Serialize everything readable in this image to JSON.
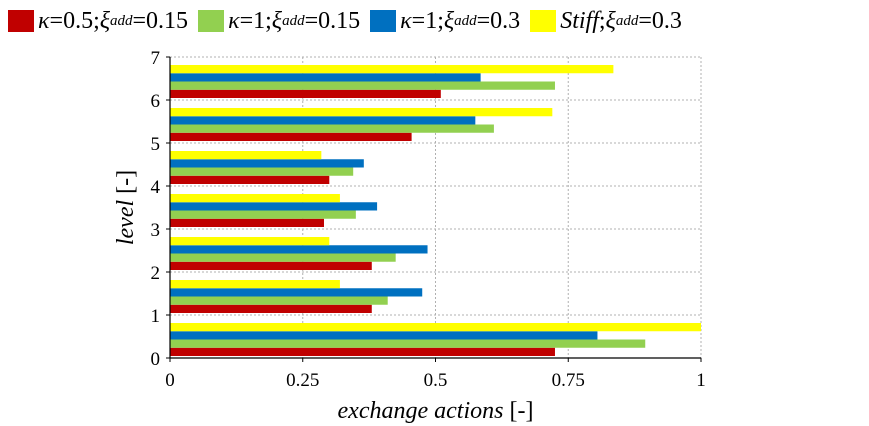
{
  "colors": {
    "series_0": "#c00000",
    "series_1": "#92d050",
    "series_2": "#0070c0",
    "series_3": "#ffff00",
    "grid": "#b0b0b0",
    "axis": "#000000"
  },
  "legend": [
    {
      "symbol": "κ",
      "eq": "=0.5; ",
      "xi": "ξ",
      "sub": "add",
      "value": "=0.15"
    },
    {
      "symbol": "κ",
      "eq": "=1; ",
      "xi": "ξ",
      "sub": "add",
      "value": "=0.15"
    },
    {
      "symbol": "κ",
      "eq": "=1; ",
      "xi": "ξ",
      "sub": "add",
      "value": "=0.3"
    },
    {
      "symbol": "Stiff",
      "eq": "; ",
      "xi": "ξ",
      "sub": "add",
      "value": "=0.3"
    }
  ],
  "chart_data": {
    "type": "bar",
    "orientation": "horizontal",
    "categories": [
      "0-1",
      "1-2",
      "2-3",
      "3-4",
      "4-5",
      "5-6",
      "6-7"
    ],
    "series": [
      {
        "name": "κ=0.5; ξadd=0.15",
        "values": [
          0.725,
          0.38,
          0.38,
          0.29,
          0.3,
          0.455,
          0.51
        ]
      },
      {
        "name": "κ=1; ξadd=0.15",
        "values": [
          0.895,
          0.41,
          0.425,
          0.35,
          0.345,
          0.61,
          0.725
        ]
      },
      {
        "name": "κ=1; ξadd=0.3",
        "values": [
          0.805,
          0.475,
          0.485,
          0.39,
          0.365,
          0.575,
          0.585
        ]
      },
      {
        "name": "Stiff; ξadd=0.3",
        "values": [
          1.0,
          0.32,
          0.3,
          0.32,
          0.285,
          0.72,
          0.835
        ]
      }
    ],
    "xlim": [
      0,
      1
    ],
    "ylim": [
      0,
      7
    ],
    "x_ticks": [
      "0",
      "0.25",
      "0.5",
      "0.75",
      "1"
    ],
    "y_ticks": [
      "0",
      "1",
      "2",
      "3",
      "4",
      "5",
      "6",
      "7"
    ],
    "xlabel_italic": "exchange actions",
    "xlabel_unit": " [-]",
    "ylabel_italic": "level",
    "ylabel_unit": " [-]",
    "grid": true,
    "legend_position": "top"
  }
}
